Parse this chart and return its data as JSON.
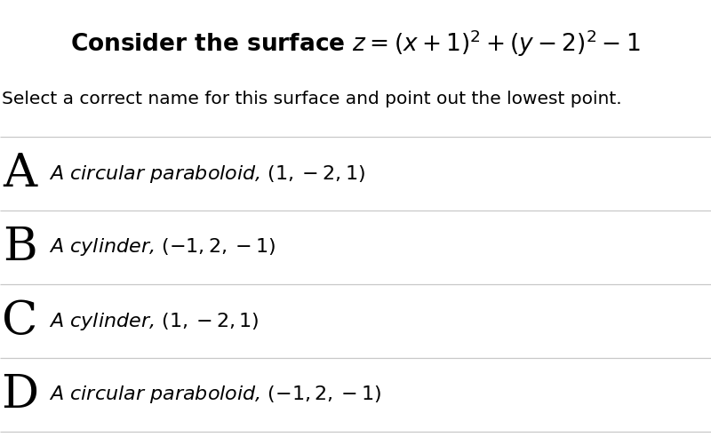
{
  "title_text": "Consider the surface $z = (x+1)^2 + (y-2)^2 - 1$",
  "subtitle_text": "Select a correct name for this surface and point out the lowest point.",
  "options": [
    {
      "label": "A",
      "text": "A circular paraboloid, $(1, -2, 1)$"
    },
    {
      "label": "B",
      "text": "A cylinder, $(-1, 2, -1)$"
    },
    {
      "label": "C",
      "text": "A cylinder, $(1, -2, 1)$"
    },
    {
      "label": "D",
      "text": "A circular paraboloid, $(-1, 2, -1)$"
    }
  ],
  "background_color": "#ffffff",
  "text_color": "#000000",
  "line_color": "#c8c8c8",
  "title_fontsize": 19,
  "subtitle_fontsize": 14.5,
  "option_label_fontsize": 38,
  "option_text_fontsize": 16,
  "fig_width": 8.0,
  "fig_height": 4.92,
  "dpi": 100
}
